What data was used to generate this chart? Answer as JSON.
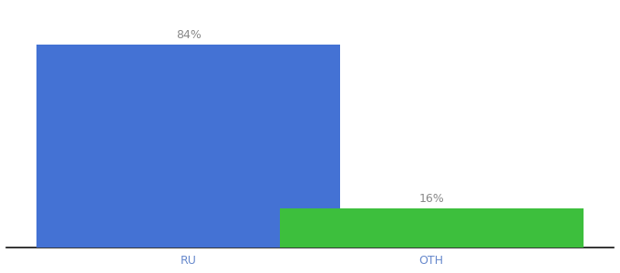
{
  "categories": [
    "RU",
    "OTH"
  ],
  "values": [
    84,
    16
  ],
  "bar_colors": [
    "#4472D4",
    "#3DBF3D"
  ],
  "labels": [
    "84%",
    "16%"
  ],
  "background_color": "#ffffff",
  "bar_width": 0.5,
  "x_positions": [
    0.3,
    0.7
  ],
  "xlim": [
    0.0,
    1.0
  ],
  "ylim": [
    0,
    100
  ],
  "label_fontsize": 9,
  "tick_fontsize": 9,
  "tick_color": "#6688CC",
  "label_color": "#888888"
}
